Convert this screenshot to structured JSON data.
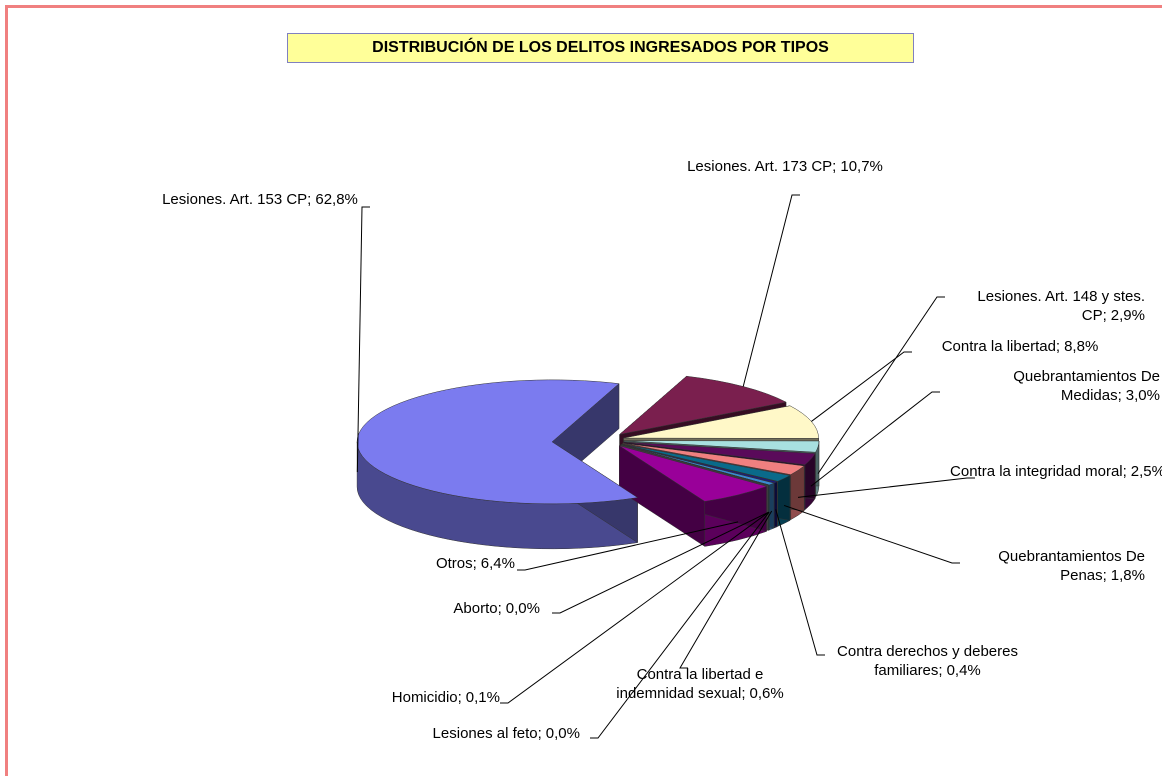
{
  "chart_data": {
    "type": "pie",
    "title": "DISTRIBUCIÓN DE LOS DELITOS INGRESADOS POR TIPOS",
    "categories": [
      "Lesiones. Art. 153 CP;",
      "Lesiones. Art. 173 CP;",
      "Contra la libertad;",
      "Lesiones. Art. 148 y stes. CP;",
      "Quebrantamientos De Medidas;",
      "Contra la integridad moral;",
      "Quebrantamientos De Penas;",
      "Contra derechos y deberes familiares;",
      "Contra la libertad e indemnidad sexual;",
      "Lesiones al feto;",
      "Homicidio;",
      "Aborto;",
      "Otros;"
    ],
    "values": [
      62.8,
      10.7,
      8.8,
      2.9,
      3.0,
      2.5,
      1.8,
      0.4,
      0.6,
      0.0,
      0.1,
      0.0,
      6.4
    ],
    "value_labels": [
      "62,8%",
      "10,7%",
      "8,8%",
      "2,9%",
      "3,0%",
      "2,5%",
      "1,8%",
      "0,4%",
      "0,6%",
      "0,0%",
      "0,1%",
      "0,0%",
      "6,4%"
    ],
    "colors": [
      "#7b7bef",
      "#7a1f4e",
      "#fff8c8",
      "#a8e0e0",
      "#5a0a5a",
      "#f08080",
      "#0a6a8a",
      "#1a1a80",
      "#3a8ad0",
      "#bbbbbb",
      "#009999",
      "#888888",
      "#990099"
    ]
  }
}
